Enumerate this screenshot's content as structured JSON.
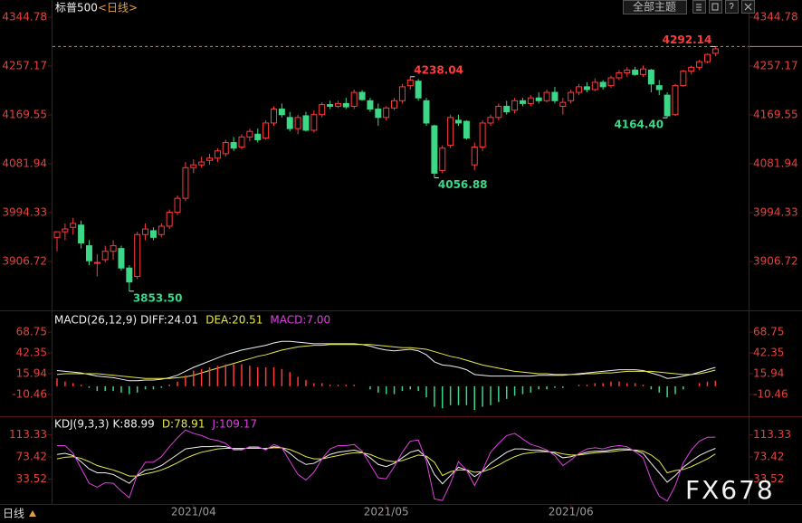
{
  "toolbar": {
    "theme": "全部主题"
  },
  "footer": {
    "period": "日线",
    "watermark": "FX678"
  },
  "chart_data": [
    {
      "type": "candlestick",
      "title": "标普500",
      "subtitle": "<日线>",
      "up_color": "#ff3b3b",
      "down_color": "#3cd787",
      "ylim": [
        3827.2,
        4362.6
      ],
      "yticks": [
        4344.78,
        4257.17,
        4169.55,
        4081.94,
        3994.33,
        3906.72
      ],
      "xticks": [
        {
          "value": 17,
          "label": "2021/04"
        },
        {
          "value": 41,
          "label": "2021/05"
        },
        {
          "value": 64,
          "label": "2021/06"
        }
      ],
      "reference_line": 4292.14,
      "extremes": [
        {
          "value": 3853.5,
          "label": "3853.50"
        },
        4238.04,
        4056.88,
        {
          "value": 4164.4,
          "label": "4164.40"
        },
        4292.14
      ],
      "open": [
        3950,
        3960,
        3968,
        3972,
        3935,
        3905,
        3910,
        3925,
        3930,
        3895,
        3880,
        3955,
        3962,
        3955,
        3970,
        3995,
        4020,
        4075,
        4080,
        4088,
        4092,
        4100,
        4120,
        4112,
        4130,
        4135,
        4128,
        4155,
        4180,
        4165,
        4145,
        4168,
        4142,
        4170,
        4188,
        4185,
        4190,
        4185,
        4210,
        4195,
        4180,
        4165,
        4182,
        4195,
        4222,
        4230,
        4195,
        4150,
        4070,
        4115,
        4160,
        4158,
        4080,
        4112,
        4155,
        4165,
        4185,
        4178,
        4195,
        4190,
        4200,
        4195,
        4210,
        4185,
        4195,
        4210,
        4220,
        4215,
        4228,
        4222,
        4236,
        4245,
        4250,
        4242,
        4250,
        4222,
        4205,
        4170,
        4222,
        4248,
        4255,
        4265,
        4280
      ],
      "high": [
        3960,
        3975,
        3985,
        3980,
        3945,
        3920,
        3935,
        3945,
        3935,
        3900,
        3960,
        3975,
        3968,
        3975,
        4000,
        4025,
        4085,
        4090,
        4095,
        4100,
        4110,
        4125,
        4130,
        4135,
        4145,
        4145,
        4160,
        4185,
        4190,
        4175,
        4170,
        4175,
        4178,
        4192,
        4195,
        4195,
        4200,
        4215,
        4214,
        4200,
        4190,
        4185,
        4200,
        4225,
        4238.04,
        4234,
        4200,
        4152,
        4115,
        4170,
        4170,
        4160,
        4120,
        4160,
        4170,
        4190,
        4195,
        4200,
        4200,
        4205,
        4210,
        4215,
        4220,
        4200,
        4215,
        4225,
        4228,
        4235,
        4232,
        4240,
        4250,
        4255,
        4256,
        4258,
        4252,
        4232,
        4210,
        4225,
        4250,
        4258,
        4268,
        4280,
        4292.14
      ],
      "low": [
        3925,
        3945,
        3955,
        3930,
        3900,
        3880,
        3905,
        3910,
        3890,
        3853.5,
        3875,
        3945,
        3945,
        3950,
        3965,
        3990,
        4015,
        4065,
        4075,
        4080,
        4085,
        4095,
        4105,
        4108,
        4122,
        4120,
        4125,
        4150,
        4165,
        4140,
        4135,
        4140,
        4138,
        4165,
        4180,
        4182,
        4180,
        4180,
        4195,
        4175,
        4150,
        4160,
        4178,
        4190,
        4215,
        4195,
        4150,
        4056.88,
        4065,
        4110,
        4150,
        4125,
        4070,
        4105,
        4150,
        4160,
        4170,
        4172,
        4185,
        4185,
        4190,
        4192,
        4190,
        4170,
        4190,
        4205,
        4210,
        4212,
        4215,
        4218,
        4232,
        4238,
        4240,
        4238,
        4210,
        4205,
        4164.4,
        4168,
        4220,
        4242,
        4250,
        4262,
        4275
      ],
      "close": [
        3960,
        3965,
        3975,
        3940,
        3908,
        3905,
        3925,
        3935,
        3895,
        3870,
        3955,
        3965,
        3950,
        3970,
        3995,
        4020,
        4075,
        4080,
        4085,
        4092,
        4105,
        4120,
        4110,
        4130,
        4140,
        4125,
        4155,
        4180,
        4170,
        4145,
        4165,
        4142,
        4170,
        4188,
        4185,
        4190,
        4184,
        4210,
        4197,
        4180,
        4165,
        4182,
        4195,
        4220,
        4232,
        4200,
        4155,
        4065,
        4110,
        4165,
        4155,
        4128,
        4112,
        4155,
        4165,
        4185,
        4175,
        4195,
        4190,
        4200,
        4195,
        4210,
        4195,
        4192,
        4210,
        4220,
        4215,
        4228,
        4220,
        4236,
        4245,
        4250,
        4242,
        4252,
        4225,
        4215,
        4168,
        4222,
        4248,
        4255,
        4265,
        4278,
        4288
      ]
    },
    {
      "type": "indicator",
      "title": "MACD(26,12,9)",
      "ylim": [
        -38,
        90.6
      ],
      "yticks": [
        68.75,
        42.35,
        15.94,
        -10.46
      ],
      "series": [
        {
          "name": "DIFF:24.01",
          "style": "line",
          "color": "#f0f0f0",
          "values": [
            20,
            19,
            18,
            17,
            15,
            13,
            12,
            11,
            9,
            7,
            7,
            8,
            8,
            9,
            11,
            14,
            19,
            24,
            28,
            32,
            36,
            40,
            43,
            46,
            48,
            50,
            52,
            55,
            57,
            57,
            56,
            55,
            54,
            54,
            54,
            54,
            54,
            54,
            53,
            51,
            48,
            46,
            45,
            46,
            47,
            45,
            40,
            31,
            27,
            26,
            24,
            21,
            15,
            14,
            13,
            13,
            13,
            13,
            13,
            13,
            14,
            14,
            14,
            14,
            15,
            16,
            17,
            18,
            19,
            20,
            21,
            21,
            21,
            20,
            17,
            14,
            10,
            11,
            13,
            15,
            18,
            21,
            24.01
          ]
        },
        {
          "name": "DEA:20.51",
          "style": "line",
          "color": "#e8e84a",
          "values": [
            15,
            16,
            16,
            16,
            16,
            16,
            15,
            14,
            13,
            12,
            11,
            10,
            10,
            10,
            10,
            11,
            12,
            14,
            17,
            20,
            23,
            26,
            29,
            32,
            35,
            38,
            40,
            43,
            46,
            48,
            50,
            51,
            52,
            52,
            53,
            53,
            53,
            53,
            53,
            53,
            52,
            51,
            50,
            49,
            49,
            48,
            47,
            44,
            41,
            38,
            36,
            33,
            30,
            27,
            25,
            23,
            21,
            19,
            18,
            17,
            16,
            16,
            15,
            15,
            15,
            15,
            16,
            16,
            17,
            17,
            18,
            19,
            19,
            19,
            19,
            18,
            17,
            16,
            15,
            15,
            16,
            18,
            20.51
          ]
        },
        {
          "name": "MACD:7.00",
          "style": "bar",
          "color": "#ff3b3b",
          "negative_color": "#3cd787",
          "values": [
            10,
            6,
            4,
            2,
            -2,
            -6,
            -6,
            -6,
            -8,
            -10,
            -8,
            -4,
            -4,
            -2,
            2,
            6,
            14,
            20,
            22,
            24,
            26,
            28,
            28,
            28,
            26,
            24,
            24,
            24,
            22,
            18,
            12,
            8,
            4,
            4,
            2,
            2,
            2,
            2,
            0,
            -4,
            -8,
            -10,
            -10,
            -6,
            -4,
            -6,
            -14,
            -26,
            -28,
            -24,
            -24,
            -24,
            -30,
            -26,
            -24,
            -20,
            -16,
            -12,
            -10,
            -8,
            -4,
            -4,
            -2,
            -2,
            0,
            2,
            2,
            4,
            4,
            6,
            6,
            4,
            4,
            2,
            -4,
            -8,
            -14,
            -10,
            -4,
            0,
            4,
            6,
            7
          ]
        }
      ]
    },
    {
      "type": "indicator",
      "title": "KDJ(9,3,3)",
      "ylim": [
        -8,
        142
      ],
      "yticks": [
        113.33,
        73.42,
        33.52
      ],
      "series": [
        {
          "name": "K:88.99",
          "style": "line",
          "color": "#f0f0f0",
          "values": [
            78,
            80,
            76,
            65,
            52,
            45,
            45,
            42,
            34,
            26,
            40,
            50,
            52,
            58,
            68,
            78,
            88,
            90,
            92,
            92,
            93,
            92,
            88,
            88,
            90,
            90,
            88,
            92,
            90,
            80,
            68,
            60,
            62,
            70,
            78,
            82,
            84,
            86,
            82,
            72,
            60,
            56,
            62,
            72,
            82,
            86,
            72,
            42,
            25,
            40,
            55,
            50,
            38,
            48,
            62,
            72,
            82,
            88,
            88,
            86,
            86,
            84,
            80,
            72,
            74,
            78,
            82,
            84,
            84,
            86,
            88,
            88,
            85,
            80,
            62,
            45,
            28,
            40,
            55,
            66,
            76,
            83,
            88.99
          ]
        },
        {
          "name": "D:78.91",
          "style": "line",
          "color": "#e8e84a",
          "values": [
            70,
            73,
            74,
            71,
            65,
            58,
            54,
            50,
            45,
            39,
            39,
            43,
            46,
            50,
            56,
            63,
            71,
            77,
            82,
            85,
            88,
            89,
            89,
            89,
            89,
            89,
            89,
            90,
            90,
            87,
            81,
            74,
            70,
            70,
            73,
            76,
            79,
            81,
            81,
            78,
            72,
            67,
            65,
            67,
            72,
            77,
            75,
            64,
            40,
            47,
            50,
            50,
            46,
            47,
            52,
            59,
            67,
            74,
            79,
            81,
            83,
            83,
            82,
            79,
            77,
            77,
            79,
            81,
            82,
            83,
            85,
            86,
            86,
            84,
            77,
            66,
            45,
            49,
            51,
            56,
            63,
            70,
            78.91
          ]
        },
        {
          "name": "J:109.17",
          "style": "line",
          "color": "#e040e0",
          "values": [
            94,
            94,
            80,
            53,
            26,
            19,
            27,
            26,
            12,
            0,
            42,
            64,
            64,
            74,
            92,
            108,
            122,
            116,
            112,
            106,
            103,
            98,
            86,
            86,
            92,
            92,
            86,
            96,
            90,
            66,
            42,
            32,
            46,
            70,
            88,
            94,
            94,
            96,
            84,
            60,
            36,
            34,
            56,
            82,
            102,
            104,
            66,
            -2,
            -5,
            26,
            65,
            50,
            22,
            50,
            82,
            98,
            112,
            116,
            106,
            96,
            92,
            86,
            76,
            58,
            68,
            80,
            88,
            90,
            88,
            92,
            94,
            92,
            83,
            72,
            32,
            3,
            -6,
            22,
            63,
            86,
            102,
            109,
            109.17
          ]
        }
      ]
    }
  ]
}
